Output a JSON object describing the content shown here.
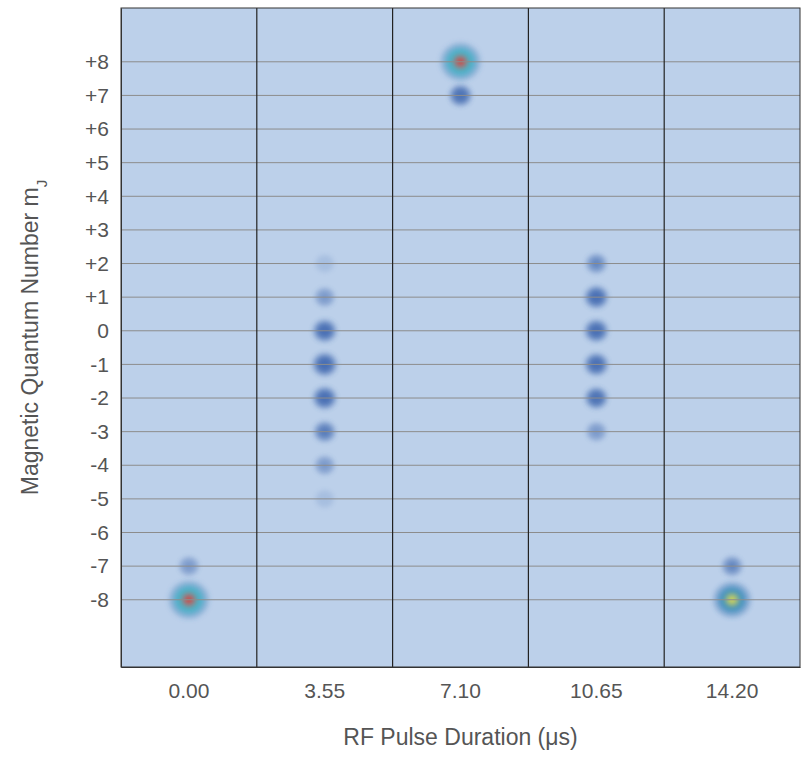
{
  "chart_data": {
    "type": "heatmap",
    "xlabel": "RF Pulse Duration (μs)",
    "ylabel": "Magnetic Quantum Number mJ",
    "categories": [
      "0.00",
      "3.55",
      "7.10",
      "10.65",
      "14.20"
    ],
    "y": [
      8,
      7,
      6,
      5,
      4,
      3,
      2,
      1,
      0,
      -1,
      -2,
      -3,
      -4,
      -5,
      -6,
      -7,
      -8
    ],
    "cells": [
      [
        0,
        0,
        0,
        0,
        0,
        0,
        0,
        0,
        0,
        0,
        0,
        0,
        0,
        0,
        0,
        0.1,
        1.0
      ],
      [
        0,
        0,
        0,
        0,
        0,
        0,
        0.05,
        0.1,
        0.3,
        0.35,
        0.3,
        0.2,
        0.1,
        0.05,
        0,
        0,
        0
      ],
      [
        1.0,
        0.25,
        0,
        0,
        0,
        0,
        0,
        0,
        0,
        0,
        0,
        0,
        0,
        0,
        0,
        0,
        0
      ],
      [
        0,
        0,
        0,
        0,
        0,
        0,
        0.15,
        0.3,
        0.3,
        0.3,
        0.25,
        0.1,
        0,
        0,
        0,
        0,
        0
      ],
      [
        0,
        0,
        0,
        0,
        0,
        0,
        0,
        0,
        0,
        0,
        0,
        0,
        0,
        0,
        0,
        0.15,
        0.9
      ]
    ],
    "ylim": [
      -10,
      9.6
    ],
    "yticks": [
      {
        "value": 8,
        "label": "+8"
      },
      {
        "value": 7,
        "label": "+7"
      },
      {
        "value": 6,
        "label": "+6"
      },
      {
        "value": 5,
        "label": "+5"
      },
      {
        "value": 4,
        "label": "+4"
      },
      {
        "value": 3,
        "label": "+3"
      },
      {
        "value": 2,
        "label": "+2"
      },
      {
        "value": 1,
        "label": "+1"
      },
      0,
      -1,
      -2,
      -3,
      -4,
      -5,
      -6,
      -7,
      -8
    ],
    "grid": true
  }
}
